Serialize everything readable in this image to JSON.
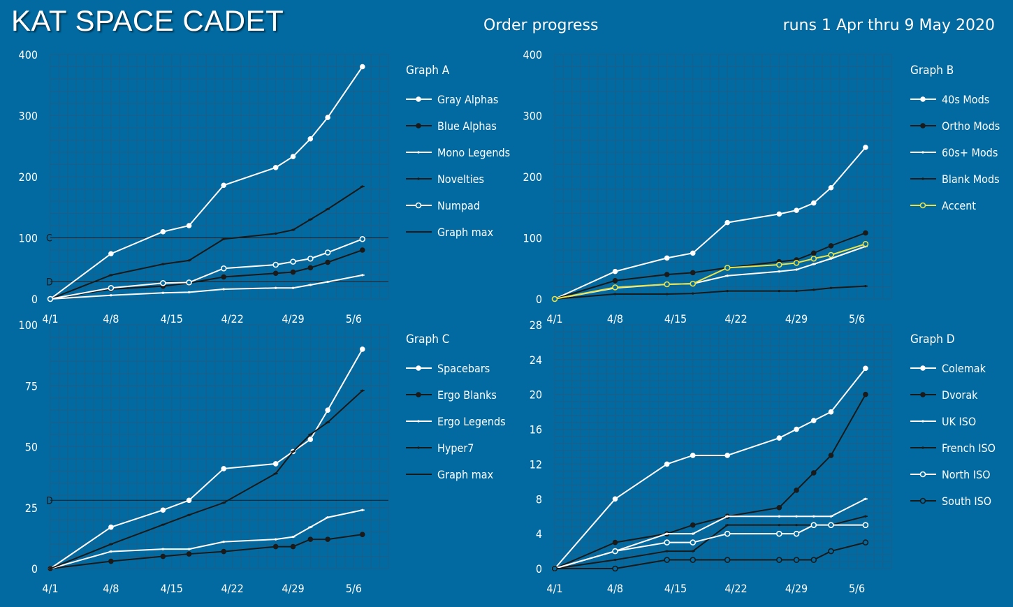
{
  "header": {
    "brand": "KAT SPACE CADET",
    "title": "Order progress",
    "runs": "runs 1 Apr thru 9 May 2020"
  },
  "colors": {
    "background": "#026aa0",
    "white": "#ffffff",
    "black": "#1a1a1a",
    "accent": "#e8e24a",
    "grid": "#1b5f88"
  },
  "chart_data": [
    {
      "type": "line",
      "title": "Graph A",
      "x": [
        "4/1",
        "4/8",
        "4/15",
        "4/22",
        "4/29",
        "5/6"
      ],
      "xlim": [
        0,
        39
      ],
      "ylim": [
        0,
        400
      ],
      "yticks": [
        0,
        100,
        200,
        300,
        400
      ],
      "grid": true,
      "legend": "right",
      "series": [
        {
          "name": "Gray Alphas",
          "style": "white-dot",
          "x": [
            0,
            7,
            13,
            16,
            20,
            26,
            28,
            30,
            32,
            36
          ],
          "y": [
            0,
            74,
            110,
            120,
            186,
            215,
            233,
            262,
            297,
            380
          ]
        },
        {
          "name": "Blue Alphas",
          "style": "black-dot",
          "x": [
            0,
            7,
            13,
            16,
            20,
            26,
            28,
            30,
            32,
            36
          ],
          "y": [
            0,
            16,
            21,
            26,
            36,
            42,
            44,
            51,
            60,
            80
          ]
        },
        {
          "name": "Mono Legends",
          "style": "white-dash",
          "x": [
            0,
            7,
            13,
            16,
            20,
            26,
            28,
            30,
            32,
            36
          ],
          "y": [
            0,
            6,
            10,
            11,
            16,
            18,
            18,
            23,
            28,
            39
          ]
        },
        {
          "name": "Novelties",
          "style": "black-dash",
          "x": [
            0,
            7,
            13,
            16,
            20,
            26,
            28,
            30,
            32,
            36
          ],
          "y": [
            0,
            39,
            57,
            63,
            98,
            107,
            113,
            130,
            147,
            184
          ]
        },
        {
          "name": "Numpad",
          "style": "white-ring",
          "x": [
            0,
            7,
            13,
            16,
            20,
            26,
            28,
            30,
            32,
            36
          ],
          "y": [
            0,
            18,
            26,
            27,
            50,
            56,
            61,
            66,
            76,
            98
          ]
        },
        {
          "name": "Graph max",
          "style": "line",
          "x": [],
          "y": []
        }
      ],
      "ref_lines": [
        {
          "label": "C",
          "y": 100
        },
        {
          "label": "D",
          "y": 28
        }
      ]
    },
    {
      "type": "line",
      "title": "Graph B",
      "x": [
        "4/1",
        "4/8",
        "4/15",
        "4/22",
        "4/29",
        "5/6"
      ],
      "xlim": [
        0,
        39
      ],
      "ylim": [
        0,
        400
      ],
      "yticks": [
        0,
        100,
        200,
        300,
        400
      ],
      "grid": true,
      "legend": "right",
      "series": [
        {
          "name": "40s Mods",
          "style": "white-dot",
          "x": [
            0,
            7,
            13,
            16,
            20,
            26,
            28,
            30,
            32,
            36
          ],
          "y": [
            0,
            45,
            67,
            75,
            125,
            139,
            145,
            157,
            182,
            248
          ]
        },
        {
          "name": "Ortho Mods",
          "style": "black-dot",
          "x": [
            0,
            7,
            13,
            16,
            20,
            26,
            28,
            30,
            32,
            36
          ],
          "y": [
            0,
            30,
            40,
            43,
            51,
            61,
            64,
            75,
            87,
            108
          ]
        },
        {
          "name": "60s+ Mods",
          "style": "white-dash",
          "x": [
            0,
            7,
            13,
            16,
            20,
            26,
            28,
            30,
            32,
            36
          ],
          "y": [
            0,
            18,
            24,
            25,
            38,
            45,
            48,
            57,
            66,
            86
          ]
        },
        {
          "name": "Blank Mods",
          "style": "black-dash",
          "x": [
            0,
            7,
            13,
            16,
            20,
            26,
            28,
            30,
            32,
            36
          ],
          "y": [
            0,
            8,
            8,
            9,
            13,
            13,
            13,
            15,
            18,
            21
          ]
        },
        {
          "name": "Accent",
          "style": "accent-ring",
          "x": [
            0,
            7,
            13,
            16,
            20,
            26,
            28,
            30,
            32,
            36
          ],
          "y": [
            0,
            19,
            24,
            25,
            51,
            56,
            59,
            66,
            72,
            90
          ]
        }
      ],
      "ref_lines": []
    },
    {
      "type": "line",
      "title": "Graph C",
      "x": [
        "4/1",
        "4/8",
        "4/15",
        "4/22",
        "4/29",
        "5/6"
      ],
      "xlim": [
        0,
        39
      ],
      "ylim": [
        0,
        100
      ],
      "yticks": [
        0,
        25,
        50,
        75,
        100
      ],
      "grid": true,
      "legend": "right",
      "series": [
        {
          "name": "Spacebars",
          "style": "white-dot",
          "x": [
            0,
            7,
            13,
            16,
            20,
            26,
            28,
            30,
            32,
            36
          ],
          "y": [
            0,
            17,
            24,
            28,
            41,
            43,
            48,
            53,
            65,
            90
          ]
        },
        {
          "name": "Ergo Blanks",
          "style": "black-dot",
          "x": [
            0,
            7,
            13,
            16,
            20,
            26,
            28,
            30,
            32,
            36
          ],
          "y": [
            0,
            3,
            5,
            6,
            7,
            9,
            9,
            12,
            12,
            14
          ]
        },
        {
          "name": "Ergo Legends",
          "style": "white-dash",
          "x": [
            0,
            7,
            13,
            16,
            20,
            26,
            28,
            30,
            32,
            36
          ],
          "y": [
            0,
            7,
            8,
            8,
            11,
            12,
            13,
            17,
            21,
            24
          ]
        },
        {
          "name": "Hyper7",
          "style": "black-dash",
          "x": [
            0,
            7,
            13,
            16,
            20,
            26,
            28,
            30,
            32,
            36
          ],
          "y": [
            0,
            10,
            18,
            22,
            27,
            39,
            48,
            55,
            60,
            73
          ]
        },
        {
          "name": "Graph max",
          "style": "line",
          "x": [],
          "y": []
        }
      ],
      "ref_lines": [
        {
          "label": "D",
          "y": 28
        }
      ]
    },
    {
      "type": "line",
      "title": "Graph D",
      "x": [
        "4/1",
        "4/8",
        "4/15",
        "4/22",
        "4/29",
        "5/6"
      ],
      "xlim": [
        0,
        39
      ],
      "ylim": [
        0,
        28
      ],
      "yticks": [
        0,
        4,
        8,
        12,
        16,
        20,
        24,
        28
      ],
      "grid": true,
      "legend": "right",
      "series": [
        {
          "name": "Colemak",
          "style": "white-dot",
          "x": [
            0,
            7,
            13,
            16,
            20,
            26,
            28,
            30,
            32,
            36
          ],
          "y": [
            0,
            8,
            12,
            13,
            13,
            15,
            16,
            17,
            18,
            23
          ]
        },
        {
          "name": "Dvorak",
          "style": "black-dot",
          "x": [
            0,
            7,
            13,
            16,
            20,
            26,
            28,
            30,
            32,
            36
          ],
          "y": [
            0,
            3,
            4,
            5,
            6,
            7,
            9,
            11,
            13,
            20
          ]
        },
        {
          "name": "UK ISO",
          "style": "white-dash",
          "x": [
            0,
            7,
            13,
            16,
            20,
            26,
            28,
            30,
            32,
            36
          ],
          "y": [
            0,
            2,
            4,
            4,
            6,
            6,
            6,
            6,
            6,
            8
          ]
        },
        {
          "name": "French ISO",
          "style": "black-dash",
          "x": [
            0,
            7,
            13,
            16,
            20,
            26,
            28,
            30,
            32,
            36
          ],
          "y": [
            0,
            1,
            2,
            2,
            5,
            5,
            5,
            5,
            5,
            6
          ]
        },
        {
          "name": "North ISO",
          "style": "white-ring",
          "x": [
            0,
            7,
            13,
            16,
            20,
            26,
            28,
            30,
            32,
            36
          ],
          "y": [
            0,
            2,
            3,
            3,
            4,
            4,
            4,
            5,
            5,
            5
          ]
        },
        {
          "name": "South ISO",
          "style": "black-ring",
          "x": [
            0,
            7,
            13,
            16,
            20,
            26,
            28,
            30,
            32,
            36
          ],
          "y": [
            0,
            0,
            1,
            1,
            1,
            1,
            1,
            1,
            2,
            3
          ]
        }
      ],
      "ref_lines": []
    }
  ]
}
